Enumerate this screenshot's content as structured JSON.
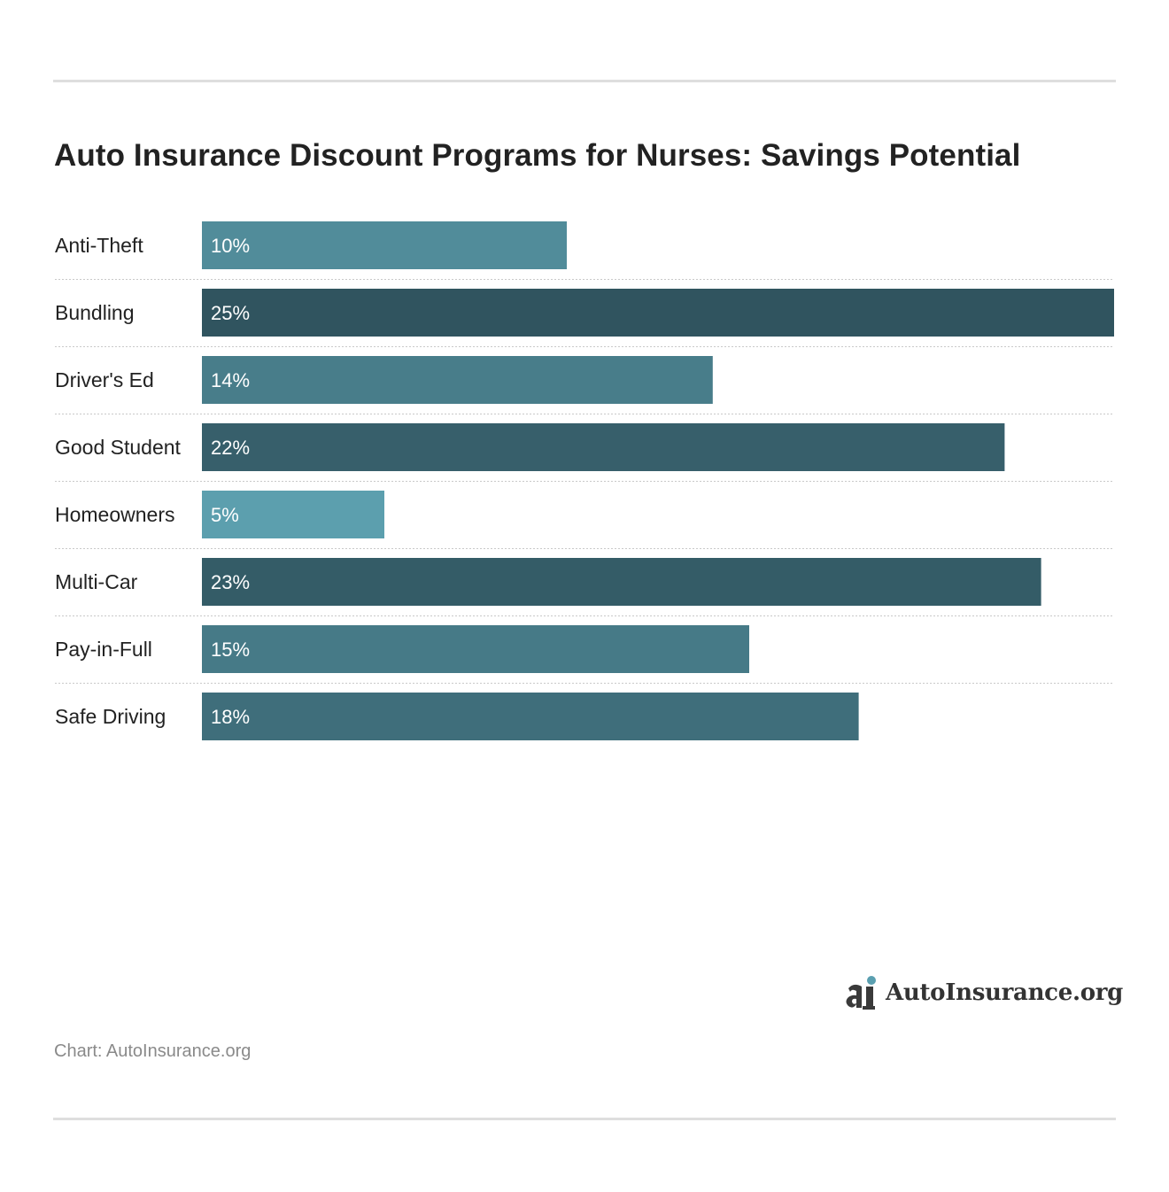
{
  "title": "Auto Insurance Discount Programs for Nurses: Savings Potential",
  "source": "Chart: AutoInsurance.org",
  "logo": {
    "text": "AutoInsurance.org",
    "icon": "autoinsurance-logo-icon"
  },
  "colors": {
    "bar_min": "#5c9fae",
    "bar_max": "#30545f",
    "rule": "#dedede",
    "title": "#222222",
    "source": "#8a8a8a",
    "logo_dot": "#5a9fb0",
    "logo_mark": "#3a3a3a"
  },
  "chart_data": {
    "type": "bar",
    "orientation": "horizontal",
    "title": "Auto Insurance Discount Programs for Nurses: Savings Potential",
    "categories": [
      "Anti-Theft",
      "Bundling",
      "Driver's Ed",
      "Good Student",
      "Homeowners",
      "Multi-Car",
      "Pay-in-Full",
      "Safe Driving"
    ],
    "values": [
      10,
      25,
      14,
      22,
      5,
      23,
      15,
      18
    ],
    "value_labels": [
      "10%",
      "25%",
      "14%",
      "22%",
      "5%",
      "23%",
      "15%",
      "18%"
    ],
    "unit": "%",
    "xlabel": "",
    "ylabel": "",
    "xlim": [
      0,
      25
    ],
    "grid": false,
    "legend": "none"
  }
}
